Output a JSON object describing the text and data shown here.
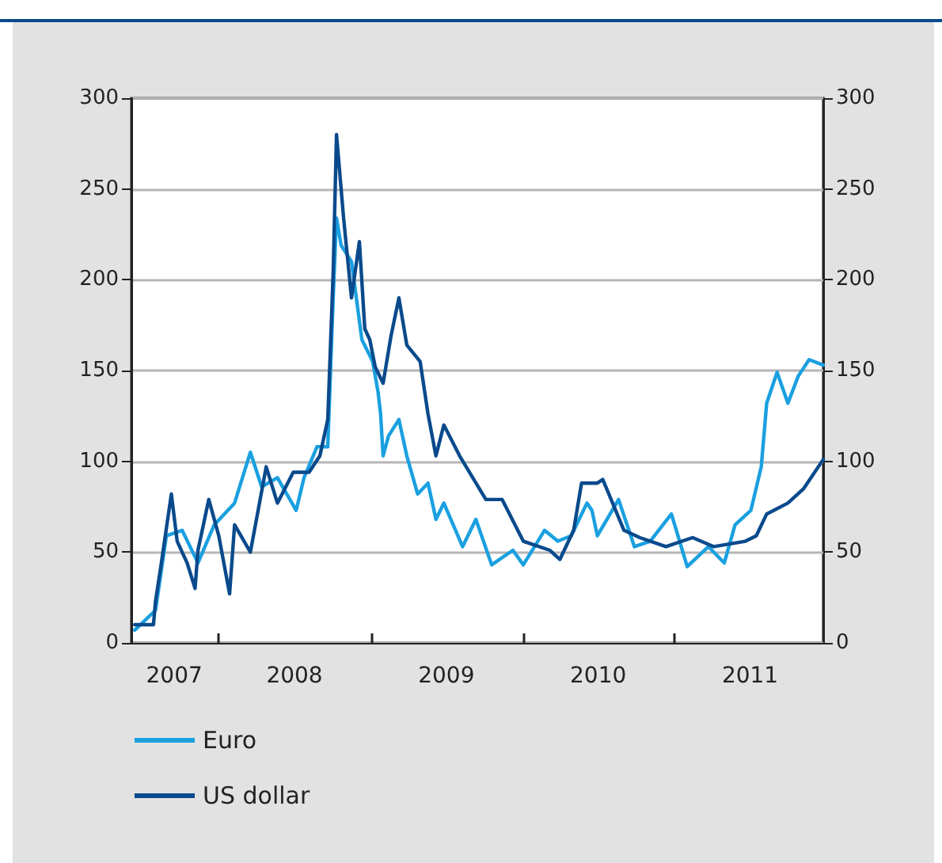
{
  "chart_data": {
    "type": "line",
    "xlim": [
      "2007-06-05",
      "2011-12-24"
    ],
    "xticks": [
      {
        "value": "2008-01-01",
        "label": null
      },
      {
        "value": "2009-01-01",
        "label": null
      },
      {
        "value": "2010-01-01",
        "label": null
      },
      {
        "value": "2011-01-01",
        "label": null
      },
      {
        "value": "2007-09-16",
        "label": "2007"
      },
      {
        "value": "2008-07-01",
        "label": "2008"
      },
      {
        "value": "2009-07-01",
        "label": "2009"
      },
      {
        "value": "2010-07-01",
        "label": "2010"
      },
      {
        "value": "2011-07-01",
        "label": "2011"
      }
    ],
    "ylim": [
      0,
      300
    ],
    "yticks": [
      0,
      50,
      100,
      150,
      200,
      250,
      300
    ],
    "y2lim": [
      0,
      300
    ],
    "y2ticks": [
      0,
      50,
      100,
      150,
      200,
      250,
      300
    ],
    "grid": "y",
    "legend": "bottom",
    "marker": "none",
    "line_style": "solid",
    "series": [
      {
        "name": "Euro",
        "color": "#1aa0e0",
        "x": [
          "2007-06-13",
          "2007-08-02",
          "2007-08-28",
          "2007-10-05",
          "2007-11-12",
          "2007-12-21",
          "2008-02-08",
          "2008-03-17",
          "2008-04-13",
          "2008-05-21",
          "2008-07-05",
          "2008-07-24",
          "2008-08-24",
          "2008-09-19",
          "2008-10-02",
          "2008-10-10",
          "2008-10-21",
          "2008-11-15",
          "2008-12-10",
          "2009-01-05",
          "2009-01-18",
          "2009-01-24",
          "2009-01-30",
          "2009-02-12",
          "2009-03-09",
          "2009-03-28",
          "2009-04-23",
          "2009-05-18",
          "2009-06-06",
          "2009-06-25",
          "2009-08-09",
          "2009-09-10",
          "2009-10-18",
          "2009-12-08",
          "2010-01-02",
          "2010-02-22",
          "2010-03-26",
          "2010-04-27",
          "2010-06-04",
          "2010-06-16",
          "2010-06-29",
          "2010-08-19",
          "2010-09-26",
          "2010-11-03",
          "2010-12-24",
          "2011-01-31",
          "2011-03-23",
          "2011-04-30",
          "2011-05-26",
          "2011-07-03",
          "2011-07-28",
          "2011-08-10",
          "2011-09-04",
          "2011-09-30",
          "2011-10-25",
          "2011-11-20",
          "2011-12-24"
        ],
        "values": [
          7,
          18,
          59,
          62,
          44,
          65,
          77,
          105,
          86,
          91,
          73,
          91,
          108,
          108,
          190,
          234,
          219,
          210,
          167,
          155,
          138,
          126,
          103,
          114,
          123,
          103,
          82,
          88,
          68,
          77,
          53,
          68,
          43,
          51,
          43,
          62,
          56,
          59,
          77,
          73,
          59,
          79,
          53,
          56,
          71,
          42,
          53,
          44,
          65,
          73,
          97,
          132,
          149,
          132,
          147,
          156,
          153
        ]
      },
      {
        "name": "US dollar",
        "color": "#0a4a8c",
        "x": [
          "2007-06-13",
          "2007-07-28",
          "2007-08-02",
          "2007-08-16",
          "2007-09-09",
          "2007-09-23",
          "2007-10-17",
          "2007-11-05",
          "2007-11-12",
          "2007-12-08",
          "2008-01-01",
          "2008-01-27",
          "2008-02-08",
          "2008-03-17",
          "2008-04-24",
          "2008-05-21",
          "2008-06-28",
          "2008-08-05",
          "2008-08-31",
          "2008-09-19",
          "2008-10-02",
          "2008-10-10",
          "2008-10-27",
          "2008-11-15",
          "2008-12-04",
          "2008-12-17",
          "2008-12-29",
          "2009-01-11",
          "2009-01-30",
          "2009-02-18",
          "2009-03-09",
          "2009-03-28",
          "2009-04-29",
          "2009-05-18",
          "2009-06-06",
          "2009-06-25",
          "2009-08-02",
          "2009-10-04",
          "2009-11-12",
          "2010-01-02",
          "2010-03-07",
          "2010-03-31",
          "2010-05-03",
          "2010-05-22",
          "2010-06-29",
          "2010-07-12",
          "2010-09-01",
          "2010-10-09",
          "2010-12-11",
          "2011-02-13",
          "2011-04-05",
          "2011-06-20",
          "2011-07-16",
          "2011-08-10",
          "2011-09-30",
          "2011-11-07",
          "2011-12-24"
        ],
        "values": [
          10,
          10,
          23,
          44,
          82,
          56,
          44,
          30,
          51,
          79,
          59,
          27,
          65,
          50,
          97,
          77,
          94,
          94,
          103,
          123,
          204,
          280,
          234,
          190,
          221,
          173,
          167,
          152,
          143,
          169,
          190,
          164,
          155,
          126,
          103,
          120,
          103,
          79,
          79,
          56,
          51,
          46,
          62,
          88,
          88,
          90,
          62,
          58,
          53,
          58,
          53,
          56,
          59,
          71,
          77,
          85,
          101
        ]
      }
    ]
  }
}
